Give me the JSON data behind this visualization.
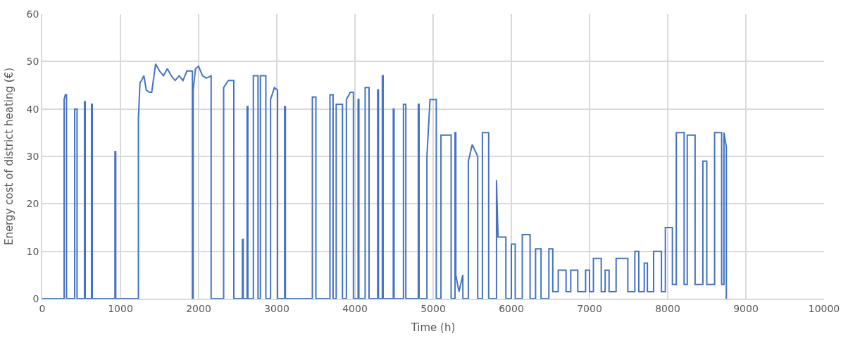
{
  "chart_data": {
    "type": "line",
    "xlabel": "Time (h)",
    "ylabel": "Energy cost of district heating (€)",
    "xlim": [
      0,
      10000
    ],
    "xticks": [
      0,
      1000,
      2000,
      3000,
      4000,
      5000,
      6000,
      7000,
      8000,
      9000,
      10000
    ],
    "ylim": [
      0,
      60
    ],
    "yticks": [
      0,
      10,
      20,
      30,
      40,
      50,
      60
    ],
    "grid": true,
    "marker": "none",
    "line_style": "solid",
    "series": [
      {
        "color": "#4472c4",
        "x": [
          0,
          280,
          280,
          295,
          310,
          310,
          415,
          415,
          445,
          445,
          540,
          540,
          550,
          550,
          630,
          630,
          640,
          640,
          930,
          930,
          940,
          940,
          1230,
          1230,
          1250,
          1270,
          1300,
          1330,
          1370,
          1400,
          1450,
          1500,
          1550,
          1600,
          1650,
          1700,
          1750,
          1800,
          1850,
          1900,
          1920,
          1920,
          1930,
          1930,
          1960,
          2000,
          2050,
          2100,
          2160,
          2160,
          2320,
          2320,
          2380,
          2450,
          2450,
          2560,
          2560,
          2570,
          2570,
          2620,
          2620,
          2630,
          2630,
          2700,
          2700,
          2760,
          2760,
          2790,
          2790,
          2860,
          2860,
          2920,
          2920,
          2970,
          3010,
          3010,
          3100,
          3100,
          3110,
          3110,
          3455,
          3455,
          3500,
          3500,
          3680,
          3680,
          3720,
          3720,
          3760,
          3760,
          3840,
          3840,
          3890,
          3890,
          3940,
          3980,
          3980,
          4040,
          4040,
          4050,
          4050,
          4130,
          4130,
          4180,
          4180,
          4290,
          4290,
          4300,
          4300,
          4350,
          4350,
          4360,
          4360,
          4490,
          4490,
          4500,
          4500,
          4620,
          4620,
          4650,
          4650,
          4810,
          4810,
          4820,
          4820,
          4920,
          4920,
          4960,
          5040,
          5040,
          5100,
          5100,
          5230,
          5230,
          5280,
          5280,
          5290,
          5290,
          5330,
          5380,
          5380,
          5450,
          5450,
          5500,
          5570,
          5570,
          5630,
          5630,
          5710,
          5710,
          5810,
          5810,
          5830,
          5930,
          5930,
          6000,
          6000,
          6050,
          6050,
          6140,
          6140,
          6240,
          6240,
          6310,
          6310,
          6380,
          6380,
          6480,
          6480,
          6530,
          6530,
          6600,
          6600,
          6700,
          6700,
          6760,
          6760,
          6850,
          6850,
          6950,
          6950,
          7000,
          7000,
          7050,
          7050,
          7150,
          7150,
          7200,
          7200,
          7250,
          7250,
          7340,
          7340,
          7490,
          7490,
          7580,
          7580,
          7630,
          7630,
          7700,
          7700,
          7740,
          7740,
          7820,
          7820,
          7920,
          7920,
          7970,
          7970,
          8060,
          8060,
          8110,
          8110,
          8210,
          8210,
          8250,
          8250,
          8350,
          8350,
          8450,
          8450,
          8500,
          8500,
          8600,
          8600,
          8690,
          8690,
          8720,
          8720,
          8750,
          8750,
          8760
        ],
        "values": [
          0,
          0,
          42,
          43,
          43,
          0,
          0,
          40,
          40,
          0,
          0,
          41.5,
          41.5,
          0,
          0,
          41,
          41,
          0,
          0,
          31,
          31,
          0,
          0,
          38,
          45.5,
          46,
          47,
          44,
          43.5,
          43.5,
          49.5,
          48,
          47,
          48.5,
          47,
          46,
          47,
          46,
          48,
          48,
          48,
          0,
          0,
          44,
          48.5,
          49,
          47,
          46.5,
          47,
          0,
          0,
          44.5,
          46,
          46,
          0,
          0,
          12.5,
          12.5,
          0,
          0,
          40.5,
          40.5,
          0,
          0,
          47,
          47,
          0,
          0,
          47,
          47,
          0,
          0,
          42,
          44.5,
          44,
          0,
          0,
          40.5,
          40.5,
          0,
          0,
          42.5,
          42.5,
          0,
          0,
          43,
          43,
          0,
          0,
          41,
          41,
          0,
          0,
          42,
          43.5,
          43.5,
          0,
          0,
          42,
          42,
          0,
          0,
          44.5,
          44.5,
          0,
          0,
          44,
          44,
          0,
          0,
          47,
          47,
          0,
          0,
          40,
          40,
          0,
          0,
          41,
          41,
          0,
          0,
          41,
          41,
          0,
          0,
          30,
          42,
          42,
          0,
          0,
          34.5,
          34.5,
          0,
          0,
          35,
          35,
          5,
          1.5,
          5,
          0,
          0,
          29,
          32.5,
          30,
          0,
          0,
          35,
          35,
          0,
          0,
          25,
          13,
          13,
          0,
          0,
          11.5,
          11.5,
          0,
          0,
          13.5,
          13.5,
          0,
          0,
          10.5,
          10.5,
          0,
          0,
          10.5,
          10.5,
          1.5,
          1.5,
          6,
          6,
          1.5,
          1.5,
          6,
          6,
          1.5,
          1.5,
          6,
          6,
          1.5,
          1.5,
          8.5,
          8.5,
          1.5,
          1.5,
          6,
          6,
          1.5,
          1.5,
          8.5,
          8.5,
          1.5,
          1.5,
          10,
          10,
          1.5,
          1.5,
          7.5,
          7.5,
          1.5,
          1.5,
          10,
          10,
          1.5,
          1.5,
          15,
          15,
          3,
          3,
          35,
          35,
          3,
          3,
          34.5,
          34.5,
          3,
          3,
          29,
          29,
          3,
          3,
          35,
          35,
          3,
          3,
          35,
          32,
          0,
          0
        ]
      }
    ]
  }
}
